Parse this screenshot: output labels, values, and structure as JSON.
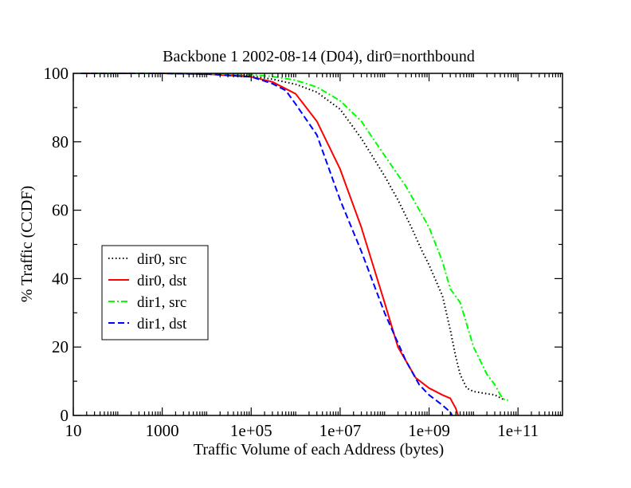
{
  "chart_data": {
    "type": "line",
    "title": "Backbone 1 2002-08-14 (D04), dir0=northbound",
    "xlabel": "Traffic Volume of each Address (bytes)",
    "ylabel": "% Traffic (CCDF)",
    "x_scale": "log",
    "xlim": [
      10,
      1000000000000
    ],
    "ylim": [
      0,
      100
    ],
    "x_ticks": [
      10,
      1000,
      100000,
      10000000,
      1000000000,
      100000000000
    ],
    "x_tick_labels": [
      "10",
      "1000",
      "1e+05",
      "1e+07",
      "1e+09",
      "1e+11"
    ],
    "y_ticks": [
      0,
      20,
      40,
      60,
      80,
      100
    ],
    "y_tick_labels": [
      "0",
      "20",
      "40",
      "60",
      "80",
      "100"
    ],
    "grid": false,
    "legend_position": "left-middle",
    "series": [
      {
        "name": "dir0, src",
        "color": "#000000",
        "style": "dotted",
        "points": [
          [
            15,
            100
          ],
          [
            1000,
            100
          ],
          [
            10000,
            99.8
          ],
          [
            100000,
            99.2
          ],
          [
            300000,
            98.3
          ],
          [
            1000000,
            96.8
          ],
          [
            3000000,
            94.5
          ],
          [
            10000000,
            89.5
          ],
          [
            30000000,
            81
          ],
          [
            100000000,
            70
          ],
          [
            200000000,
            63
          ],
          [
            400000000,
            55
          ],
          [
            700000000,
            48
          ],
          [
            1000000000,
            44
          ],
          [
            2000000000,
            35
          ],
          [
            3000000000,
            25
          ],
          [
            4000000000,
            17
          ],
          [
            5000000000,
            12
          ],
          [
            7000000000,
            8
          ],
          [
            10000000000,
            7
          ],
          [
            30000000000,
            6
          ],
          [
            50000000000,
            4.5
          ]
        ]
      },
      {
        "name": "dir0, dst",
        "color": "#ff0000",
        "style": "solid",
        "points": [
          [
            15,
            100
          ],
          [
            1000,
            100
          ],
          [
            10000,
            99.8
          ],
          [
            100000,
            99
          ],
          [
            300000,
            97.5
          ],
          [
            1000000,
            94
          ],
          [
            3000000,
            86
          ],
          [
            10000000,
            72
          ],
          [
            30000000,
            55
          ],
          [
            100000000,
            33
          ],
          [
            200000000,
            20
          ],
          [
            500000000,
            11
          ],
          [
            1000000000,
            8
          ],
          [
            2000000000,
            6
          ],
          [
            3000000000,
            5
          ],
          [
            4000000000,
            2
          ],
          [
            4500000000,
            0
          ]
        ]
      },
      {
        "name": "dir1, src",
        "color": "#00ff00",
        "style": "dash-dot",
        "points": [
          [
            15,
            100
          ],
          [
            1000,
            100
          ],
          [
            10000,
            99.9
          ],
          [
            100000,
            99.6
          ],
          [
            300000,
            99.1
          ],
          [
            1000000,
            98
          ],
          [
            3000000,
            96
          ],
          [
            10000000,
            92
          ],
          [
            30000000,
            86
          ],
          [
            100000000,
            76
          ],
          [
            300000000,
            67
          ],
          [
            1000000000,
            55
          ],
          [
            2000000000,
            45
          ],
          [
            3000000000,
            37
          ],
          [
            5000000000,
            33
          ],
          [
            10000000000,
            20
          ],
          [
            20000000000,
            12
          ],
          [
            30000000000,
            9
          ],
          [
            40000000000,
            6
          ],
          [
            50000000000,
            4.5
          ],
          [
            60000000000,
            4.5
          ]
        ]
      },
      {
        "name": "dir1, dst",
        "color": "#0000ff",
        "style": "dashed",
        "points": [
          [
            15,
            100
          ],
          [
            1000,
            100
          ],
          [
            10000,
            99.8
          ],
          [
            100000,
            99
          ],
          [
            300000,
            97
          ],
          [
            600000,
            95
          ],
          [
            1000000,
            91
          ],
          [
            3000000,
            82
          ],
          [
            10000000,
            63
          ],
          [
            30000000,
            48
          ],
          [
            100000000,
            30
          ],
          [
            300000000,
            16
          ],
          [
            600000000,
            9
          ],
          [
            1000000000,
            6
          ],
          [
            2000000000,
            3
          ],
          [
            3000000000,
            1
          ],
          [
            3300000000,
            0
          ]
        ]
      }
    ]
  }
}
